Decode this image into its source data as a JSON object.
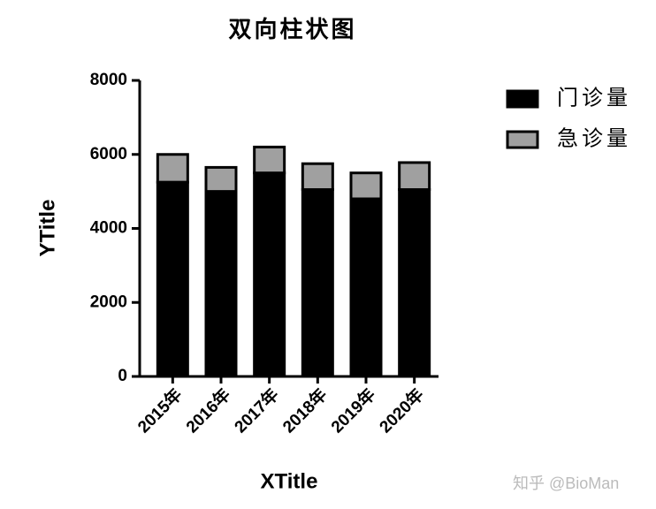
{
  "chart_data": {
    "type": "stacked_bar",
    "title": "双向柱状图",
    "x_label": "XTitle",
    "y_label": "YTitle",
    "categories": [
      "2015年",
      "2016年",
      "2017年",
      "2018年",
      "2019年",
      "2020年"
    ],
    "series": [
      {
        "name": "门诊量",
        "color": "#000000",
        "values": [
          5250,
          5000,
          5500,
          5050,
          4800,
          5050
        ]
      },
      {
        "name": "急诊量",
        "color": "#a0a0a0",
        "values": [
          750,
          650,
          700,
          700,
          700,
          730
        ]
      }
    ],
    "ylim": [
      0,
      8000
    ],
    "yticks": [
      0,
      2000,
      4000,
      6000,
      8000
    ],
    "legend": "right"
  },
  "watermark": "知乎 @BioMan"
}
